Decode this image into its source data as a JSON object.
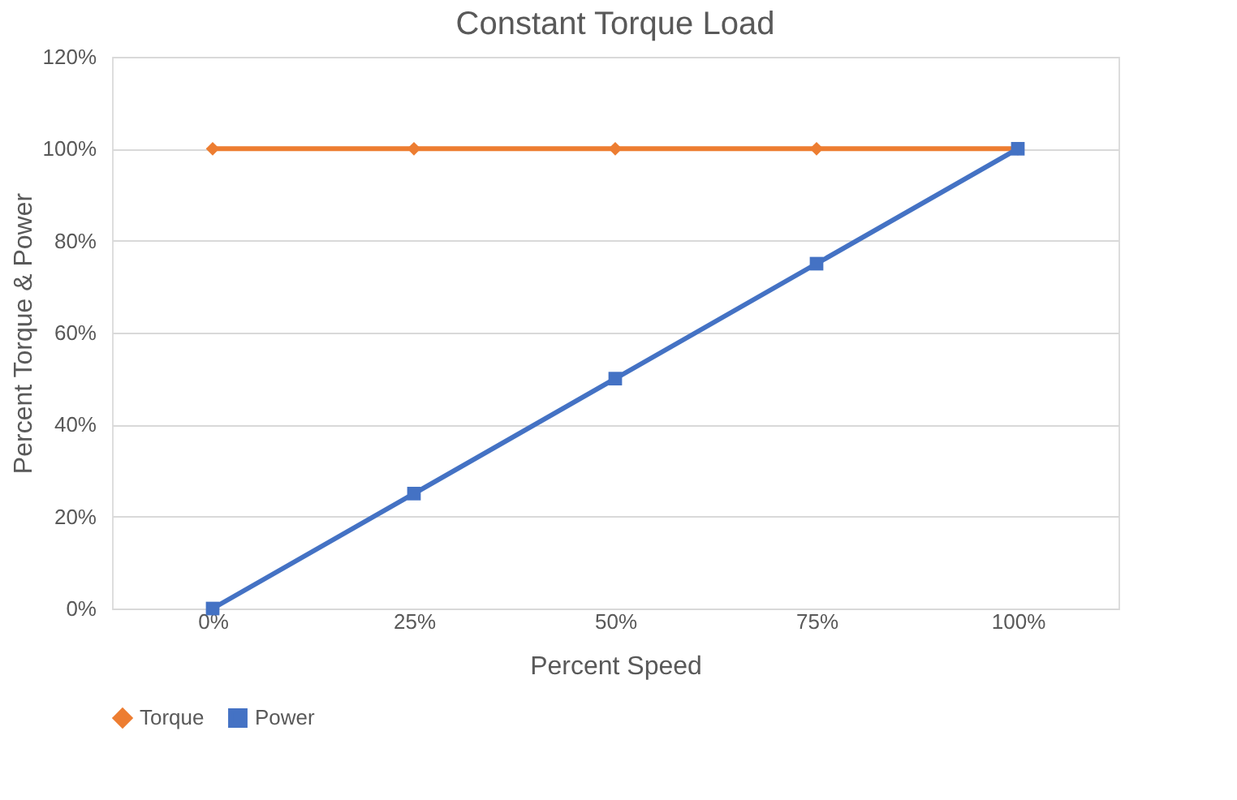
{
  "chart_data": {
    "type": "line",
    "title": "Constant Torque Load",
    "xlabel": "Percent Speed",
    "ylabel": "Percent Torque & Power",
    "categories": [
      "0%",
      "25%",
      "50%",
      "75%",
      "100%"
    ],
    "series": [
      {
        "name": "Torque",
        "color": "#ed7d31",
        "marker": "diamond",
        "values": [
          100,
          100,
          100,
          100,
          100
        ]
      },
      {
        "name": "Power",
        "color": "#4472c4",
        "marker": "square",
        "values": [
          0,
          25,
          50,
          75,
          100
        ]
      }
    ],
    "ylim": [
      0,
      120
    ],
    "yticks": [
      {
        "value": 0,
        "label": "0%"
      },
      {
        "value": 20,
        "label": "20%"
      },
      {
        "value": 40,
        "label": "40%"
      },
      {
        "value": 60,
        "label": "60%"
      },
      {
        "value": 80,
        "label": "80%"
      },
      {
        "value": 100,
        "label": "100%"
      },
      {
        "value": 120,
        "label": "120%"
      }
    ],
    "grid": "y",
    "legend": "bottom",
    "line_style": "solid"
  }
}
